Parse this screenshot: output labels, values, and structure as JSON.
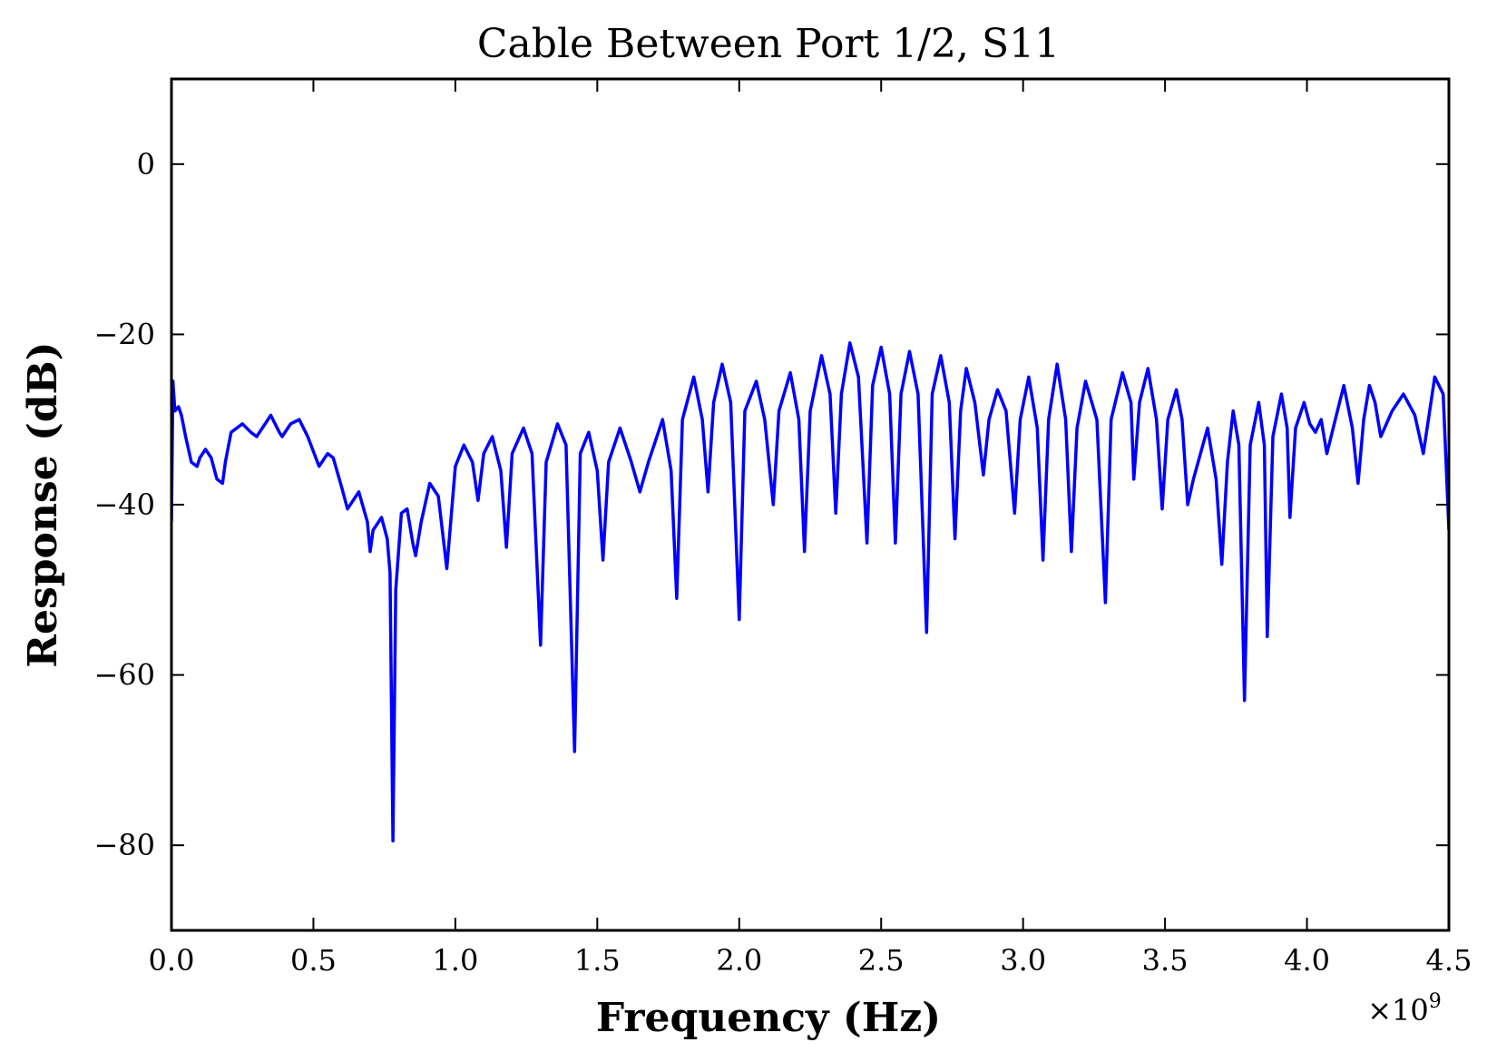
{
  "chart_data": {
    "type": "line",
    "title": "Cable Between Port 1/2, S11",
    "xlabel": "Frequency (Hz)",
    "ylabel": "Response (dB)",
    "x_offset_label": "×10",
    "x_offset_exponent": "9",
    "xlim": [
      0,
      4.5
    ],
    "ylim": [
      -90,
      10
    ],
    "x_ticks": [
      0.0,
      0.5,
      1.0,
      1.5,
      2.0,
      2.5,
      3.0,
      3.5,
      4.0,
      4.5
    ],
    "x_tick_labels": [
      "0.0",
      "0.5",
      "1.0",
      "1.5",
      "2.0",
      "2.5",
      "3.0",
      "3.5",
      "4.0",
      "4.5"
    ],
    "y_ticks": [
      0,
      -20,
      -40,
      -60,
      -80
    ],
    "y_tick_labels": [
      "0",
      "−20",
      "−40",
      "−60",
      "−80"
    ],
    "grid": false,
    "series": [
      {
        "color": "#0000ff",
        "x": [
          0.0,
          0.005,
          0.012,
          0.025,
          0.035,
          0.05,
          0.07,
          0.09,
          0.1,
          0.12,
          0.14,
          0.16,
          0.18,
          0.19,
          0.21,
          0.25,
          0.28,
          0.3,
          0.35,
          0.38,
          0.39,
          0.42,
          0.45,
          0.48,
          0.52,
          0.55,
          0.57,
          0.6,
          0.62,
          0.66,
          0.69,
          0.7,
          0.71,
          0.74,
          0.76,
          0.77,
          0.78,
          0.79,
          0.81,
          0.83,
          0.85,
          0.86,
          0.88,
          0.91,
          0.94,
          0.97,
          1.0,
          1.03,
          1.06,
          1.08,
          1.1,
          1.13,
          1.16,
          1.18,
          1.2,
          1.24,
          1.27,
          1.3,
          1.32,
          1.36,
          1.39,
          1.42,
          1.44,
          1.47,
          1.5,
          1.52,
          1.54,
          1.58,
          1.62,
          1.65,
          1.68,
          1.73,
          1.76,
          1.78,
          1.8,
          1.84,
          1.87,
          1.89,
          1.91,
          1.94,
          1.97,
          2.0,
          2.02,
          2.06,
          2.09,
          2.12,
          2.14,
          2.18,
          2.21,
          2.23,
          2.25,
          2.29,
          2.32,
          2.34,
          2.36,
          2.39,
          2.42,
          2.45,
          2.47,
          2.5,
          2.53,
          2.55,
          2.57,
          2.6,
          2.63,
          2.66,
          2.68,
          2.71,
          2.74,
          2.76,
          2.78,
          2.8,
          2.83,
          2.86,
          2.88,
          2.91,
          2.94,
          2.97,
          2.99,
          3.02,
          3.05,
          3.07,
          3.09,
          3.12,
          3.15,
          3.17,
          3.19,
          3.22,
          3.26,
          3.29,
          3.31,
          3.35,
          3.38,
          3.39,
          3.41,
          3.44,
          3.47,
          3.49,
          3.51,
          3.54,
          3.56,
          3.58,
          3.6,
          3.65,
          3.68,
          3.7,
          3.72,
          3.74,
          3.76,
          3.78,
          3.8,
          3.83,
          3.85,
          3.86,
          3.88,
          3.91,
          3.93,
          3.94,
          3.96,
          3.99,
          4.01,
          4.03,
          4.05,
          4.07,
          4.1,
          4.13,
          4.16,
          4.18,
          4.2,
          4.22,
          4.24,
          4.26,
          4.3,
          4.34,
          4.38,
          4.41,
          4.45,
          4.48,
          4.5
        ],
        "y": [
          -42,
          -25.5,
          -29,
          -28.5,
          -29.5,
          -32,
          -35,
          -35.5,
          -34.5,
          -33.5,
          -34.5,
          -37,
          -37.5,
          -35,
          -31.5,
          -30.5,
          -31.5,
          -32,
          -29.5,
          -31.5,
          -32,
          -30.5,
          -30,
          -32,
          -35.5,
          -34,
          -34.5,
          -38,
          -40.5,
          -38.5,
          -42,
          -45.5,
          -43,
          -41.5,
          -44,
          -48,
          -79.5,
          -50,
          -41,
          -40.5,
          -44.5,
          -46,
          -42,
          -37.5,
          -39,
          -47.5,
          -35.5,
          -33,
          -35,
          -39.5,
          -34,
          -32,
          -36,
          -45,
          -34,
          -31,
          -34,
          -56.5,
          -35,
          -30.5,
          -33,
          -69,
          -34,
          -31.5,
          -36,
          -46.5,
          -35,
          -31,
          -35,
          -38.5,
          -35,
          -30,
          -36,
          -51,
          -30,
          -25,
          -30,
          -38.5,
          -28,
          -23.5,
          -28,
          -53.5,
          -29,
          -25.5,
          -30,
          -40,
          -29,
          -24.5,
          -30,
          -45.5,
          -29,
          -22.5,
          -27,
          -41,
          -27,
          -21,
          -25,
          -44.5,
          -26,
          -21.5,
          -27,
          -44.5,
          -27,
          -22,
          -27,
          -55,
          -27,
          -22.5,
          -28,
          -44,
          -29,
          -24,
          -28,
          -36.5,
          -30,
          -26.5,
          -29,
          -41,
          -30,
          -25,
          -31,
          -46.5,
          -30,
          -23.5,
          -30,
          -45.5,
          -31,
          -25.5,
          -30,
          -51.5,
          -30,
          -24.5,
          -28,
          -37,
          -28,
          -24,
          -30,
          -40.5,
          -30,
          -26.5,
          -30,
          -40,
          -37,
          -31,
          -37,
          -47,
          -35,
          -29,
          -33,
          -63,
          -33,
          -28,
          -33,
          -55.5,
          -32,
          -27,
          -31,
          -41.5,
          -31,
          -28,
          -30.5,
          -31.5,
          -30,
          -34,
          -30,
          -26,
          -31,
          -37.5,
          -30,
          -26,
          -28,
          -32,
          -29,
          -27,
          -29.5,
          -34,
          -25,
          -27,
          -43
        ]
      }
    ]
  }
}
